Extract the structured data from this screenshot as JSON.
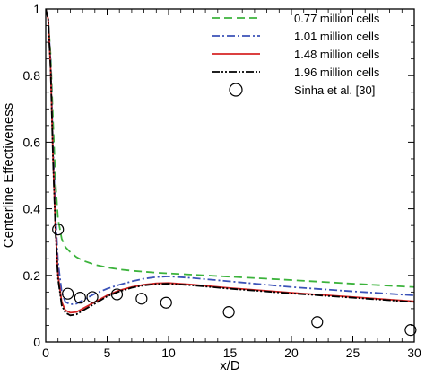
{
  "chart_data": {
    "type": "line",
    "xlabel": "x/D",
    "ylabel": "Centerline Effectiveness",
    "xlim": [
      0,
      30
    ],
    "ylim": [
      0,
      1
    ],
    "xticks": [
      "0",
      "5",
      "10",
      "15",
      "20",
      "25",
      "30"
    ],
    "yticks": [
      "0",
      "0.2",
      "0.4",
      "0.6",
      "0.8",
      "1"
    ],
    "legend_position": "top-right",
    "grid": false,
    "series": [
      {
        "name": "0.77 million cells",
        "color": "#3cb33c",
        "style": "dashed",
        "x": [
          0,
          0.2,
          0.4,
          0.6,
          0.8,
          1.0,
          1.3,
          1.6,
          2,
          2.5,
          3,
          4,
          5,
          6,
          7,
          8,
          9,
          10,
          12,
          15,
          20,
          25,
          30
        ],
        "y": [
          1.0,
          0.97,
          0.86,
          0.66,
          0.48,
          0.37,
          0.31,
          0.285,
          0.27,
          0.255,
          0.245,
          0.232,
          0.224,
          0.218,
          0.214,
          0.211,
          0.208,
          0.206,
          0.202,
          0.196,
          0.186,
          0.175,
          0.165
        ]
      },
      {
        "name": "1.01 million cells",
        "color": "#3b52b8",
        "style": "dashdot",
        "x": [
          0,
          0.2,
          0.4,
          0.6,
          0.8,
          1.0,
          1.3,
          1.6,
          2,
          2.5,
          3,
          4,
          5,
          6,
          7,
          8,
          9,
          10,
          12,
          15,
          20,
          25,
          30
        ],
        "y": [
          1.0,
          0.97,
          0.84,
          0.58,
          0.38,
          0.24,
          0.15,
          0.12,
          0.113,
          0.115,
          0.125,
          0.145,
          0.16,
          0.172,
          0.182,
          0.19,
          0.195,
          0.197,
          0.192,
          0.182,
          0.165,
          0.152,
          0.14
        ]
      },
      {
        "name": "1.48 million cells",
        "color": "#d62424",
        "style": "solid",
        "x": [
          0,
          0.2,
          0.4,
          0.6,
          0.8,
          1.0,
          1.3,
          1.6,
          2,
          2.5,
          3,
          4,
          5,
          6,
          7,
          8,
          9,
          10,
          12,
          15,
          20,
          25,
          30
        ],
        "y": [
          1.0,
          0.97,
          0.82,
          0.55,
          0.34,
          0.2,
          0.12,
          0.095,
          0.088,
          0.09,
          0.1,
          0.12,
          0.14,
          0.155,
          0.165,
          0.172,
          0.176,
          0.177,
          0.172,
          0.162,
          0.148,
          0.135,
          0.122
        ]
      },
      {
        "name": "1.96 million cells",
        "color": "#000000",
        "style": "dashdotdot",
        "x": [
          0,
          0.2,
          0.4,
          0.6,
          0.8,
          1.0,
          1.3,
          1.6,
          2,
          2.5,
          3,
          4,
          5,
          6,
          7,
          8,
          9,
          10,
          12,
          15,
          20,
          25,
          30
        ],
        "y": [
          1.0,
          0.97,
          0.82,
          0.54,
          0.33,
          0.19,
          0.11,
          0.088,
          0.08,
          0.083,
          0.094,
          0.115,
          0.137,
          0.152,
          0.163,
          0.17,
          0.174,
          0.175,
          0.17,
          0.16,
          0.146,
          0.133,
          0.12
        ]
      },
      {
        "name": "Sinha et al. [30]",
        "color": "#000000",
        "style": "markers",
        "marker": "open-circle",
        "x": [
          1.0,
          1.8,
          2.8,
          3.8,
          5.8,
          7.8,
          9.8,
          14.9,
          22.1,
          29.7
        ],
        "y": [
          0.338,
          0.145,
          0.133,
          0.135,
          0.143,
          0.13,
          0.118,
          0.09,
          0.06,
          0.036
        ]
      }
    ]
  }
}
